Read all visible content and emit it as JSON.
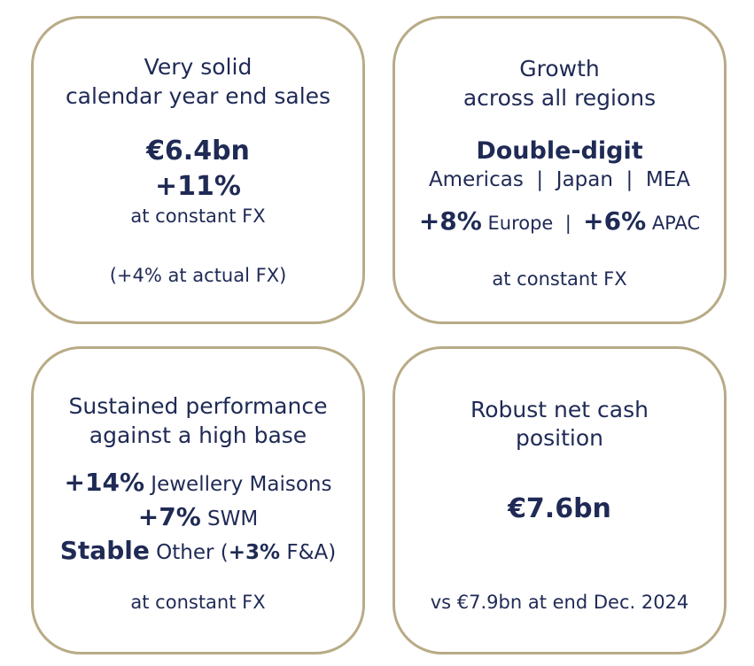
{
  "cards": [
    {
      "title_line1": "Very solid",
      "title_line2": "calendar year end sales",
      "value": "€6.4bn",
      "growth": "+11%",
      "note": "at constant FX",
      "footnote": "(+4% at actual FX)"
    },
    {
      "title_line1": "Growth",
      "title_line2": "across all regions",
      "headline": "Double-digit",
      "regions": "Americas  |  Japan  |  MEA",
      "europe_pct": "+8%",
      "europe_label": " Europe  |  ",
      "apac_pct": "+6%",
      "apac_label": " APAC",
      "note": "at constant FX"
    },
    {
      "title_line1": "Sustained performance",
      "title_line2": "against a high base",
      "jewellery_pct": "+14%",
      "jewellery_label": " Jewellery Maisons",
      "swm_pct": "+7%",
      "swm_label": " SWM",
      "other_word": "Stable",
      "other_label_pre": " Other (",
      "fa_pct": "+3%",
      "other_label_post": " F&A)",
      "note": "at constant FX"
    },
    {
      "title_line1": "Robust net cash",
      "title_line2": "position",
      "value": "€7.6bn",
      "note": "vs €7.9bn at end Dec. 2024"
    }
  ]
}
